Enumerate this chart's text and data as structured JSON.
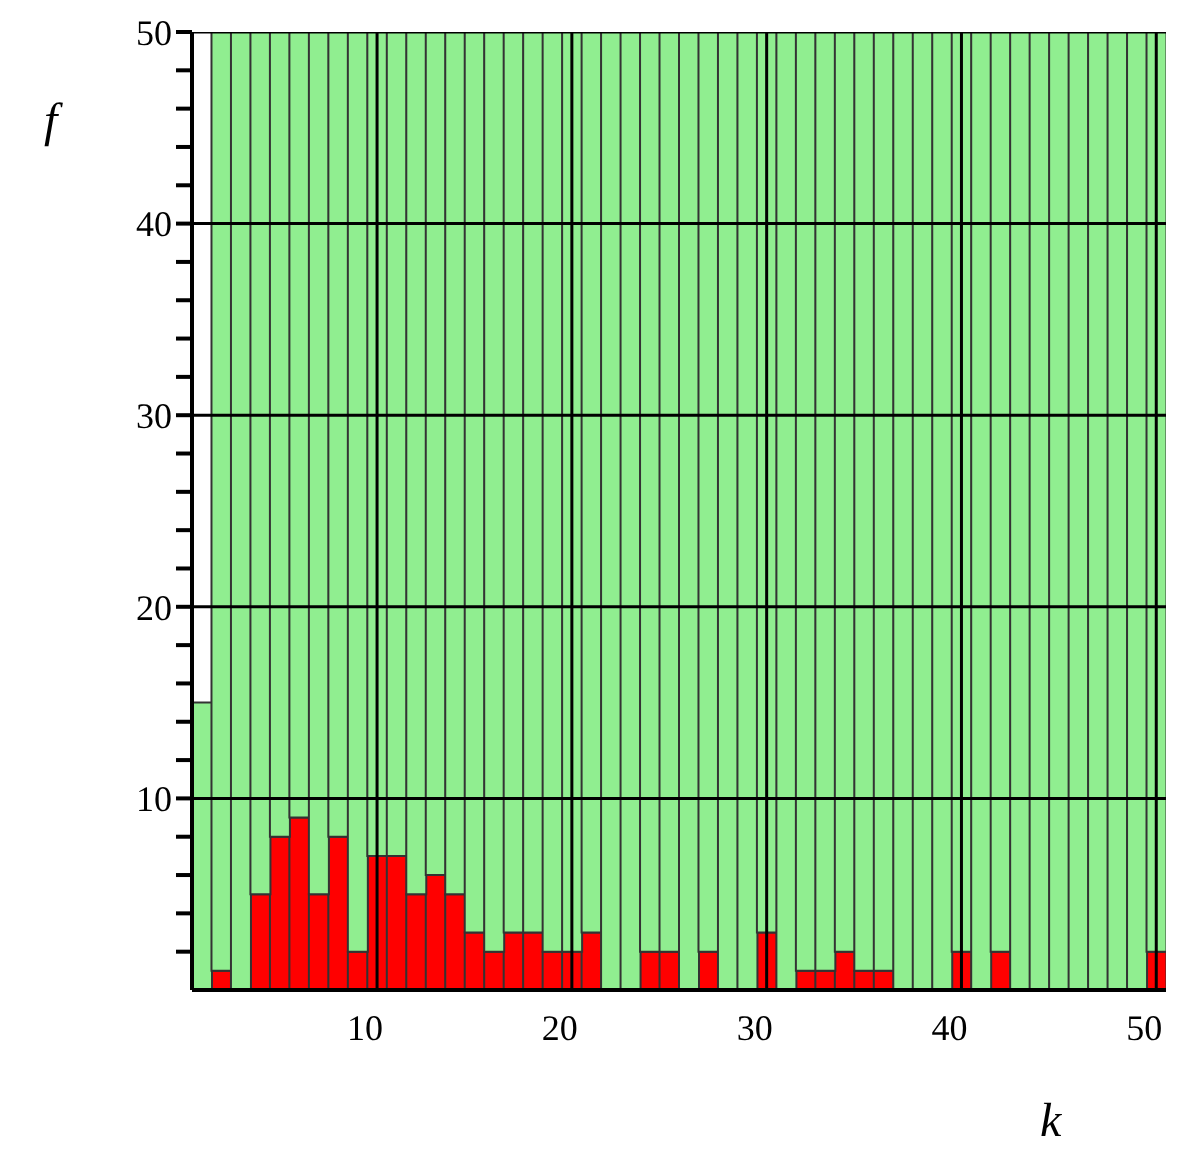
{
  "chart_data": {
    "type": "bar",
    "stacked": true,
    "xlabel": "k",
    "ylabel": "f",
    "x": [
      1,
      2,
      3,
      4,
      5,
      6,
      7,
      8,
      9,
      10,
      11,
      12,
      13,
      14,
      15,
      16,
      17,
      18,
      19,
      20,
      21,
      22,
      23,
      24,
      25,
      26,
      27,
      28,
      29,
      30,
      31,
      32,
      33,
      34,
      35,
      36,
      37,
      38,
      39,
      40,
      41,
      42,
      43,
      44,
      45,
      46,
      47,
      48,
      49,
      50
    ],
    "series": [
      {
        "color": "#ff0000",
        "values": [
          0,
          1,
          0,
          5,
          8,
          9,
          5,
          8,
          2,
          7,
          7,
          5,
          6,
          5,
          3,
          2,
          3,
          3,
          2,
          2,
          3,
          0,
          0,
          2,
          2,
          0,
          2,
          0,
          0,
          3,
          0,
          1,
          1,
          2,
          1,
          1,
          0,
          0,
          0,
          2,
          0,
          2,
          0,
          0,
          0,
          0,
          0,
          0,
          0,
          2
        ]
      },
      {
        "color": "#90ee90",
        "values": [
          15,
          49,
          50,
          45,
          42,
          41,
          45,
          42,
          48,
          43,
          43,
          45,
          44,
          45,
          47,
          48,
          47,
          47,
          48,
          48,
          47,
          50,
          50,
          48,
          48,
          50,
          48,
          50,
          50,
          47,
          50,
          49,
          49,
          48,
          49,
          49,
          50,
          50,
          50,
          48,
          50,
          48,
          50,
          50,
          50,
          50,
          50,
          50,
          50,
          48
        ]
      }
    ],
    "xlim": [
      0.5,
      50.5
    ],
    "xticks": [
      10,
      20,
      30,
      40,
      50
    ],
    "ylim": [
      0,
      50
    ],
    "yticks": [
      {
        "value": 2,
        "label": null
      },
      {
        "value": 4,
        "label": null
      },
      {
        "value": 6,
        "label": null
      },
      {
        "value": 8,
        "label": null
      },
      10,
      {
        "value": 12,
        "label": null
      },
      {
        "value": 14,
        "label": null
      },
      {
        "value": 16,
        "label": null
      },
      {
        "value": 18,
        "label": null
      },
      20,
      {
        "value": 22,
        "label": null
      },
      {
        "value": 24,
        "label": null
      },
      {
        "value": 26,
        "label": null
      },
      {
        "value": 28,
        "label": null
      },
      30,
      {
        "value": 32,
        "label": null
      },
      {
        "value": 34,
        "label": null
      },
      {
        "value": 36,
        "label": null
      },
      {
        "value": 38,
        "label": null
      },
      40,
      {
        "value": 42,
        "label": null
      },
      {
        "value": 44,
        "label": null
      },
      {
        "value": 46,
        "label": null
      },
      {
        "value": 48,
        "label": null
      },
      50
    ],
    "grid": true
  }
}
